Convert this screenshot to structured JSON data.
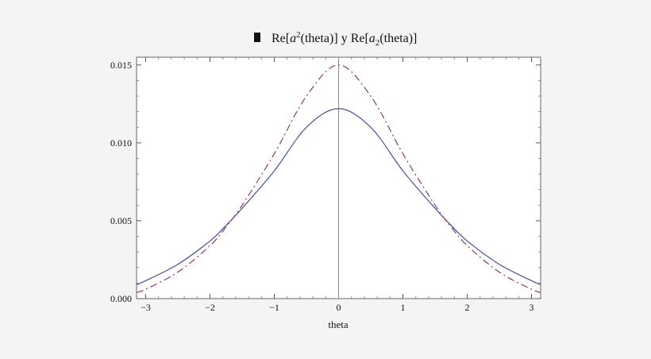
{
  "chart_data": {
    "type": "line",
    "title": {
      "prefix": "Re[",
      "var1": "a",
      "sup1": "2",
      "mid": "(theta)] y Re[",
      "var2": "a",
      "sub2": "2",
      "suffix": "(theta)]"
    },
    "xlabel": "theta",
    "ylabel": "",
    "xlim": [
      -3.1416,
      3.1416
    ],
    "ylim": [
      0,
      0.0155
    ],
    "xticks": [
      -3,
      -2,
      -1,
      0,
      1,
      2,
      3
    ],
    "xtick_labels": [
      "−3",
      "−2",
      "−1",
      "0",
      "1",
      "2",
      "3"
    ],
    "yticks": [
      0,
      0.005,
      0.01,
      0.015
    ],
    "ytick_labels": [
      "0.000",
      "0.005",
      "0.010",
      "0.015"
    ],
    "grid": false,
    "series": [
      {
        "color": "#4a4f9a",
        "style": "solid",
        "x": [
          -3.1416,
          -3,
          -2.5,
          -2,
          -1.75,
          -1.5,
          -1,
          -0.5,
          0,
          0.5,
          1,
          1.5,
          1.75,
          2,
          2.5,
          3,
          3.1416
        ],
        "y": [
          0.0009,
          0.00115,
          0.0022,
          0.0037,
          0.0047,
          0.0058,
          0.0082,
          0.011,
          0.0122,
          0.011,
          0.0082,
          0.0058,
          0.0047,
          0.0037,
          0.0022,
          0.00115,
          0.0009
        ]
      },
      {
        "color": "#8e3b5f",
        "style": "dash-dot",
        "x": [
          -3.1416,
          -3,
          -2.5,
          -2,
          -1.75,
          -1.5,
          -1,
          -0.5,
          0,
          0.5,
          1,
          1.5,
          1.75,
          2,
          2.5,
          3,
          3.1416
        ],
        "y": [
          0.0004,
          0.0006,
          0.0017,
          0.0034,
          0.0046,
          0.006,
          0.0093,
          0.013,
          0.015,
          0.013,
          0.0093,
          0.006,
          0.0046,
          0.0034,
          0.0017,
          0.0006,
          0.0004
        ]
      }
    ]
  }
}
